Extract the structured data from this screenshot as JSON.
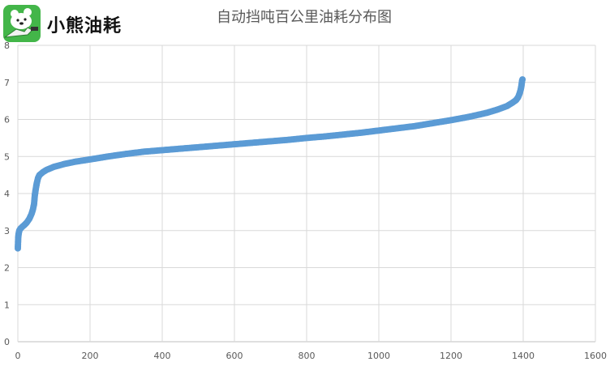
{
  "brand": {
    "name": "小熊油耗",
    "logo": "bear-fuel-nozzle-logo",
    "logo_color": "#43b649"
  },
  "chart_data": {
    "type": "scatter",
    "title": "自动挡吨百公里油耗分布图",
    "xlabel": "",
    "ylabel": "",
    "xlim": [
      0,
      1600
    ],
    "ylim": [
      0,
      8
    ],
    "x_ticks": [
      "0",
      "200",
      "400",
      "600",
      "800",
      "1000",
      "1200",
      "1400",
      "1600"
    ],
    "y_ticks": [
      "0",
      "1",
      "2",
      "3",
      "4",
      "5",
      "6",
      "7",
      "8"
    ],
    "grid": true,
    "legend": "none",
    "marker_color": "#5b9bd5",
    "series": [
      {
        "points": [
          [
            0,
            2.52
          ],
          [
            1,
            2.8
          ],
          [
            2,
            2.9
          ],
          [
            4,
            3.0
          ],
          [
            7,
            3.05
          ],
          [
            12,
            3.1
          ],
          [
            18,
            3.15
          ],
          [
            25,
            3.22
          ],
          [
            32,
            3.32
          ],
          [
            38,
            3.45
          ],
          [
            42,
            3.58
          ],
          [
            45,
            3.72
          ],
          [
            47,
            3.95
          ],
          [
            49,
            4.08
          ],
          [
            51,
            4.2
          ],
          [
            53,
            4.3
          ],
          [
            56,
            4.42
          ],
          [
            60,
            4.5
          ],
          [
            70,
            4.58
          ],
          [
            80,
            4.64
          ],
          [
            100,
            4.72
          ],
          [
            130,
            4.8
          ],
          [
            160,
            4.86
          ],
          [
            200,
            4.92
          ],
          [
            250,
            5.0
          ],
          [
            300,
            5.07
          ],
          [
            350,
            5.13
          ],
          [
            400,
            5.17
          ],
          [
            450,
            5.21
          ],
          [
            500,
            5.25
          ],
          [
            550,
            5.29
          ],
          [
            600,
            5.33
          ],
          [
            650,
            5.37
          ],
          [
            700,
            5.41
          ],
          [
            750,
            5.45
          ],
          [
            800,
            5.5
          ],
          [
            850,
            5.54
          ],
          [
            900,
            5.59
          ],
          [
            950,
            5.64
          ],
          [
            1000,
            5.7
          ],
          [
            1050,
            5.76
          ],
          [
            1100,
            5.82
          ],
          [
            1150,
            5.9
          ],
          [
            1200,
            5.98
          ],
          [
            1250,
            6.07
          ],
          [
            1300,
            6.18
          ],
          [
            1330,
            6.27
          ],
          [
            1355,
            6.36
          ],
          [
            1370,
            6.45
          ],
          [
            1380,
            6.52
          ],
          [
            1386,
            6.6
          ],
          [
            1390,
            6.7
          ],
          [
            1393,
            6.8
          ],
          [
            1395,
            6.9
          ],
          [
            1396,
            6.98
          ],
          [
            1397,
            7.05
          ],
          [
            1398,
            7.08
          ]
        ]
      }
    ]
  }
}
